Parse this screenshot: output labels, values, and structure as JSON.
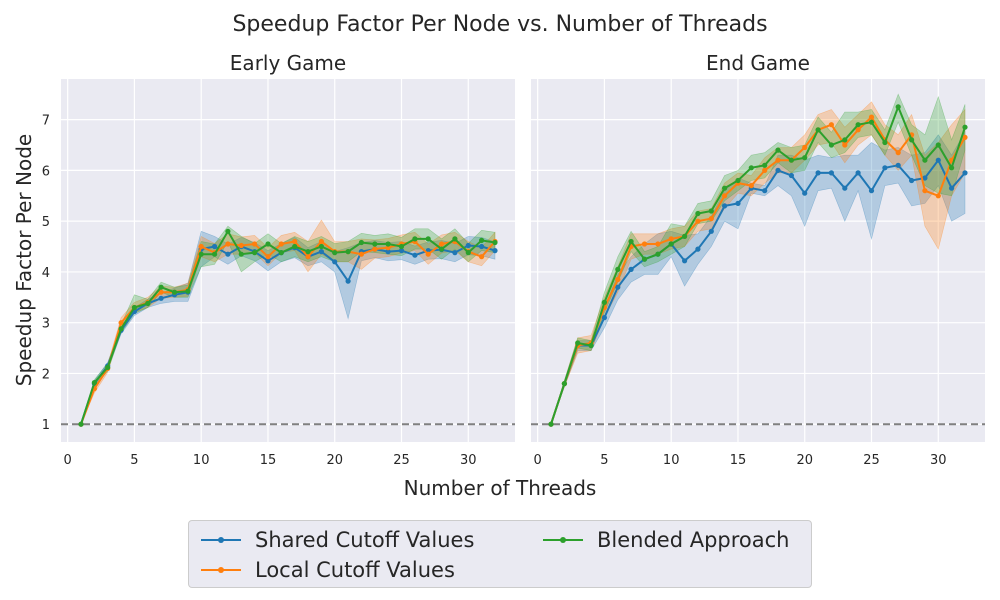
{
  "figure": {
    "title": "Speedup Factor Per Node vs. Number of Threads",
    "xlabel": "Number of Threads",
    "ylabel": "Speedup Factor Per Node"
  },
  "legend": {
    "items": [
      {
        "label": "Shared Cutoff Values",
        "color": "#1f77b4"
      },
      {
        "label": "Local Cutoff Values",
        "color": "#ff7f0e"
      },
      {
        "label": "Blended Approach",
        "color": "#2ca02c"
      }
    ]
  },
  "colors": {
    "background": "#eaeaf2",
    "grid": "#ffffff",
    "reference_line": "#808080"
  },
  "chart_data": [
    {
      "type": "line",
      "title": "Early Game",
      "xlim": [
        -0.5,
        33.5
      ],
      "ylim": [
        0.65,
        7.8
      ],
      "xticks": [
        0,
        5,
        10,
        15,
        20,
        25,
        30
      ],
      "yticks": [
        1,
        2,
        3,
        4,
        5,
        6,
        7
      ],
      "grid": true,
      "reference_line_y": 1,
      "x": [
        1,
        2,
        3,
        4,
        5,
        6,
        7,
        8,
        9,
        10,
        11,
        12,
        13,
        14,
        15,
        16,
        17,
        18,
        19,
        20,
        21,
        22,
        23,
        24,
        25,
        26,
        27,
        28,
        29,
        30,
        31,
        32
      ],
      "series": [
        {
          "name": "Shared Cutoff Values",
          "color": "#1f77b4",
          "values": [
            1.0,
            1.8,
            2.15,
            2.85,
            3.22,
            3.38,
            3.48,
            3.55,
            3.6,
            4.45,
            4.5,
            4.35,
            4.5,
            4.4,
            4.22,
            4.38,
            4.48,
            4.3,
            4.4,
            4.2,
            3.82,
            4.4,
            4.45,
            4.4,
            4.42,
            4.33,
            4.42,
            4.44,
            4.38,
            4.52,
            4.5,
            4.42
          ],
          "lower": [
            1.0,
            1.74,
            2.08,
            2.78,
            3.14,
            3.3,
            3.38,
            3.42,
            3.42,
            4.1,
            4.3,
            4.15,
            4.32,
            4.22,
            4.02,
            4.2,
            4.28,
            4.12,
            4.2,
            4.0,
            3.08,
            4.22,
            4.28,
            4.22,
            4.24,
            4.15,
            4.25,
            4.26,
            4.2,
            4.34,
            4.32,
            4.25
          ],
          "upper": [
            1.0,
            1.86,
            2.22,
            2.92,
            3.3,
            3.46,
            3.58,
            3.68,
            3.78,
            4.8,
            4.7,
            4.55,
            4.68,
            4.58,
            4.42,
            4.56,
            4.68,
            4.48,
            4.6,
            4.4,
            4.48,
            4.58,
            4.62,
            4.58,
            4.6,
            4.51,
            4.59,
            4.62,
            4.56,
            4.7,
            4.68,
            4.59
          ]
        },
        {
          "name": "Local Cutoff Values",
          "color": "#ff7f0e",
          "values": [
            1.0,
            1.7,
            2.1,
            3.0,
            3.3,
            3.4,
            3.6,
            3.6,
            3.65,
            4.5,
            4.38,
            4.55,
            4.52,
            4.55,
            4.3,
            4.55,
            4.6,
            4.3,
            4.6,
            4.4,
            4.4,
            4.35,
            4.45,
            4.48,
            4.55,
            4.6,
            4.35,
            4.55,
            4.6,
            4.4,
            4.3,
            4.6
          ],
          "lower": [
            1.0,
            1.62,
            2.02,
            2.9,
            3.2,
            3.3,
            3.48,
            3.5,
            3.52,
            4.3,
            4.2,
            4.35,
            4.35,
            4.38,
            4.12,
            4.38,
            4.42,
            4.0,
            4.35,
            4.2,
            4.2,
            4.05,
            4.27,
            4.3,
            4.37,
            4.42,
            4.15,
            4.37,
            4.42,
            4.2,
            4.12,
            4.42
          ],
          "upper": [
            1.0,
            1.78,
            2.18,
            3.1,
            3.4,
            3.5,
            3.72,
            3.7,
            3.78,
            4.7,
            4.56,
            4.75,
            4.69,
            4.72,
            4.48,
            4.72,
            4.78,
            4.6,
            5.02,
            4.6,
            4.6,
            4.65,
            4.63,
            4.66,
            4.73,
            4.78,
            4.55,
            4.73,
            4.78,
            4.6,
            4.48,
            4.78
          ]
        },
        {
          "name": "Blended Approach",
          "color": "#2ca02c",
          "values": [
            1.0,
            1.82,
            2.12,
            2.88,
            3.3,
            3.38,
            3.7,
            3.6,
            3.62,
            4.35,
            4.35,
            4.8,
            4.35,
            4.38,
            4.55,
            4.38,
            4.5,
            4.4,
            4.5,
            4.38,
            4.4,
            4.58,
            4.55,
            4.55,
            4.5,
            4.65,
            4.65,
            4.45,
            4.65,
            4.38,
            4.62,
            4.58
          ],
          "lower": [
            1.0,
            1.76,
            2.04,
            2.8,
            3.18,
            3.3,
            3.6,
            3.5,
            3.5,
            4.1,
            4.15,
            4.6,
            4.0,
            4.2,
            4.35,
            4.2,
            4.3,
            4.2,
            4.3,
            4.2,
            4.2,
            4.4,
            4.38,
            4.35,
            4.32,
            4.45,
            4.45,
            4.25,
            4.45,
            4.2,
            4.42,
            4.38
          ],
          "upper": [
            1.0,
            1.88,
            2.2,
            2.96,
            3.55,
            3.46,
            3.8,
            3.7,
            3.74,
            4.6,
            4.55,
            4.9,
            4.7,
            4.56,
            4.75,
            4.56,
            4.7,
            4.6,
            4.7,
            4.56,
            4.6,
            4.76,
            4.72,
            4.75,
            4.68,
            4.85,
            4.85,
            4.65,
            4.85,
            4.56,
            4.82,
            4.78
          ]
        }
      ]
    },
    {
      "type": "line",
      "title": "End Game",
      "xlim": [
        -0.5,
        33.5
      ],
      "ylim": [
        0.65,
        7.8
      ],
      "xticks": [
        0,
        5,
        10,
        15,
        20,
        25,
        30
      ],
      "yticks": [
        1,
        2,
        3,
        4,
        5,
        6,
        7
      ],
      "grid": true,
      "reference_line_y": 1,
      "x": [
        1,
        2,
        3,
        4,
        5,
        6,
        7,
        8,
        9,
        10,
        11,
        12,
        13,
        14,
        15,
        16,
        17,
        18,
        19,
        20,
        21,
        22,
        23,
        24,
        25,
        26,
        27,
        28,
        29,
        30,
        31,
        32
      ],
      "series": [
        {
          "name": "Shared Cutoff Values",
          "color": "#1f77b4",
          "values": [
            1.0,
            1.8,
            2.55,
            2.55,
            3.1,
            3.7,
            4.05,
            4.25,
            4.35,
            4.55,
            4.22,
            4.45,
            4.8,
            5.3,
            5.35,
            5.65,
            5.6,
            6.0,
            5.9,
            5.55,
            5.95,
            5.95,
            5.65,
            5.95,
            5.6,
            6.05,
            6.1,
            5.8,
            5.85,
            6.2,
            5.65,
            5.95
          ],
          "lower": [
            1.0,
            1.74,
            2.45,
            2.45,
            2.9,
            3.45,
            3.8,
            3.95,
            3.95,
            4.3,
            3.72,
            4.15,
            4.5,
            5.0,
            4.85,
            5.55,
            5.5,
            5.7,
            5.5,
            4.9,
            5.6,
            5.65,
            5.0,
            5.6,
            4.65,
            5.7,
            5.75,
            5.3,
            5.35,
            5.7,
            5.0,
            5.15
          ],
          "upper": [
            1.0,
            1.86,
            2.65,
            2.65,
            3.3,
            3.95,
            4.3,
            4.55,
            4.75,
            4.8,
            4.72,
            4.75,
            5.1,
            5.6,
            5.85,
            5.75,
            5.7,
            6.3,
            6.3,
            6.2,
            6.3,
            6.25,
            6.3,
            6.3,
            6.55,
            6.4,
            6.45,
            6.3,
            6.35,
            6.7,
            6.3,
            6.75
          ]
        },
        {
          "name": "Local Cutoff Values",
          "color": "#ff7f0e",
          "values": [
            1.0,
            1.8,
            2.55,
            2.6,
            3.3,
            3.85,
            4.5,
            4.55,
            4.55,
            4.65,
            4.7,
            5.0,
            5.05,
            5.5,
            5.75,
            5.7,
            6.0,
            6.2,
            6.2,
            6.45,
            6.8,
            6.9,
            6.5,
            6.8,
            7.05,
            6.6,
            6.35,
            6.7,
            5.6,
            5.5,
            6.2,
            6.65
          ],
          "lower": [
            1.0,
            1.74,
            2.4,
            2.45,
            3.1,
            3.6,
            4.25,
            4.35,
            4.35,
            4.45,
            4.5,
            4.8,
            4.85,
            5.25,
            5.55,
            5.5,
            5.75,
            5.95,
            5.95,
            6.2,
            6.5,
            6.55,
            6.15,
            6.5,
            6.7,
            6.3,
            6.0,
            6.3,
            4.9,
            4.45,
            5.5,
            5.95
          ],
          "upper": [
            1.0,
            1.86,
            2.7,
            2.75,
            3.5,
            4.1,
            4.75,
            4.75,
            4.75,
            4.85,
            4.9,
            5.2,
            5.25,
            5.75,
            5.95,
            5.9,
            6.25,
            6.45,
            6.45,
            6.7,
            7.1,
            7.2,
            6.85,
            7.1,
            7.35,
            6.9,
            6.7,
            7.1,
            6.3,
            6.55,
            6.9,
            7.2
          ]
        },
        {
          "name": "Blended Approach",
          "color": "#2ca02c",
          "values": [
            1.0,
            1.8,
            2.6,
            2.55,
            3.4,
            4.05,
            4.6,
            4.25,
            4.35,
            4.55,
            4.7,
            5.15,
            5.2,
            5.65,
            5.8,
            6.05,
            6.1,
            6.4,
            6.2,
            6.25,
            6.8,
            6.5,
            6.6,
            6.9,
            6.95,
            6.55,
            7.25,
            6.6,
            6.2,
            6.5,
            6.05,
            6.85
          ],
          "lower": [
            1.0,
            1.74,
            2.5,
            2.45,
            3.2,
            3.8,
            4.4,
            4.1,
            4.2,
            4.35,
            4.5,
            4.95,
            5.0,
            5.4,
            5.6,
            5.8,
            5.85,
            6.15,
            5.95,
            6.0,
            6.55,
            6.25,
            6.35,
            6.65,
            6.7,
            6.3,
            6.95,
            6.3,
            5.7,
            5.55,
            5.5,
            6.4
          ],
          "upper": [
            1.0,
            1.86,
            2.7,
            2.65,
            3.6,
            4.3,
            4.8,
            4.4,
            4.5,
            4.95,
            4.9,
            5.35,
            5.4,
            5.9,
            6.0,
            6.3,
            6.35,
            6.55,
            6.45,
            6.5,
            7.05,
            6.75,
            7.15,
            7.15,
            7.2,
            6.8,
            7.5,
            6.9,
            6.7,
            7.45,
            6.6,
            7.3
          ]
        }
      ]
    }
  ]
}
